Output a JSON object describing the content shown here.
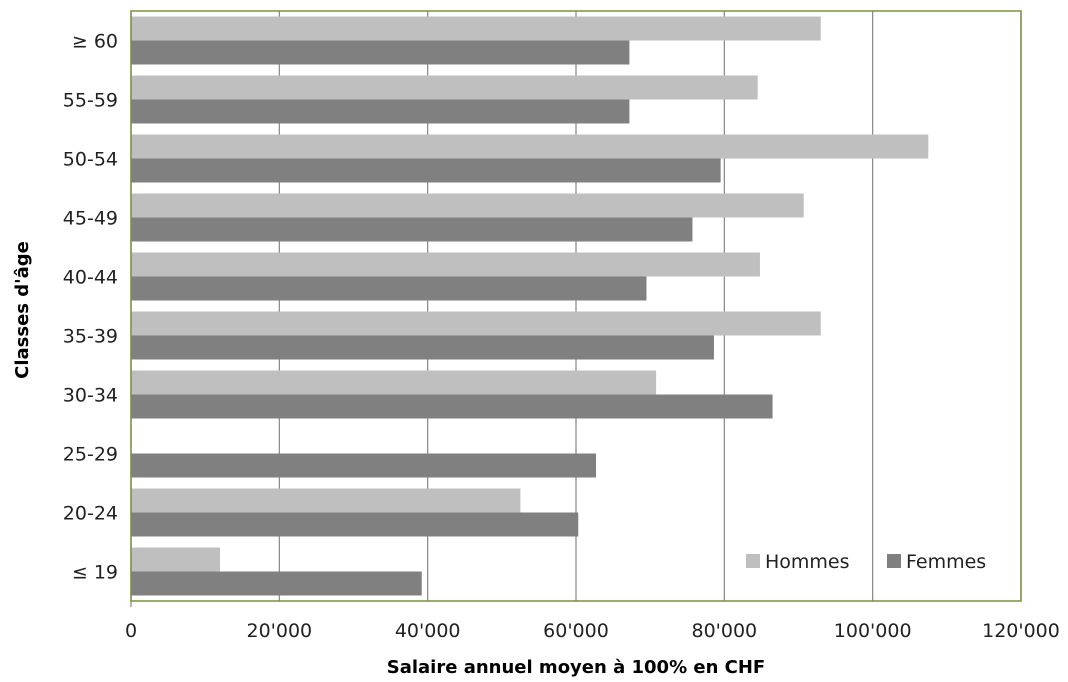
{
  "chart_data": {
    "type": "bar",
    "orientation": "horizontal",
    "categories": [
      "≥ 60",
      "55-59",
      "50-54",
      "45-49",
      "40-44",
      "35-39",
      "30-34",
      "25-29",
      "20-24",
      "≤ 19"
    ],
    "series": [
      {
        "name": "Hommes",
        "color": "#bfbfbf",
        "values": [
          93000,
          84500,
          107500,
          90700,
          84800,
          93000,
          70800,
          null,
          52500,
          12000
        ]
      },
      {
        "name": "Femmes",
        "color": "#808080",
        "values": [
          67200,
          67200,
          79500,
          75700,
          69500,
          78600,
          86500,
          62700,
          60300,
          39200
        ]
      }
    ],
    "xlabel": "Salaire annuel moyen à 100% en CHF",
    "ylabel": "Classes d'âge",
    "xlim": [
      0,
      120000
    ],
    "xticks": [
      0,
      20000,
      40000,
      60000,
      80000,
      100000,
      120000
    ],
    "xtick_labels": [
      "0",
      "20'000",
      "40'000",
      "60'000",
      "80'000",
      "100'000",
      "120'000"
    ],
    "grid": "vertical",
    "legend_position": "bottom-right",
    "plot_border_color": "#77933c",
    "gridline_color": "#868686"
  }
}
